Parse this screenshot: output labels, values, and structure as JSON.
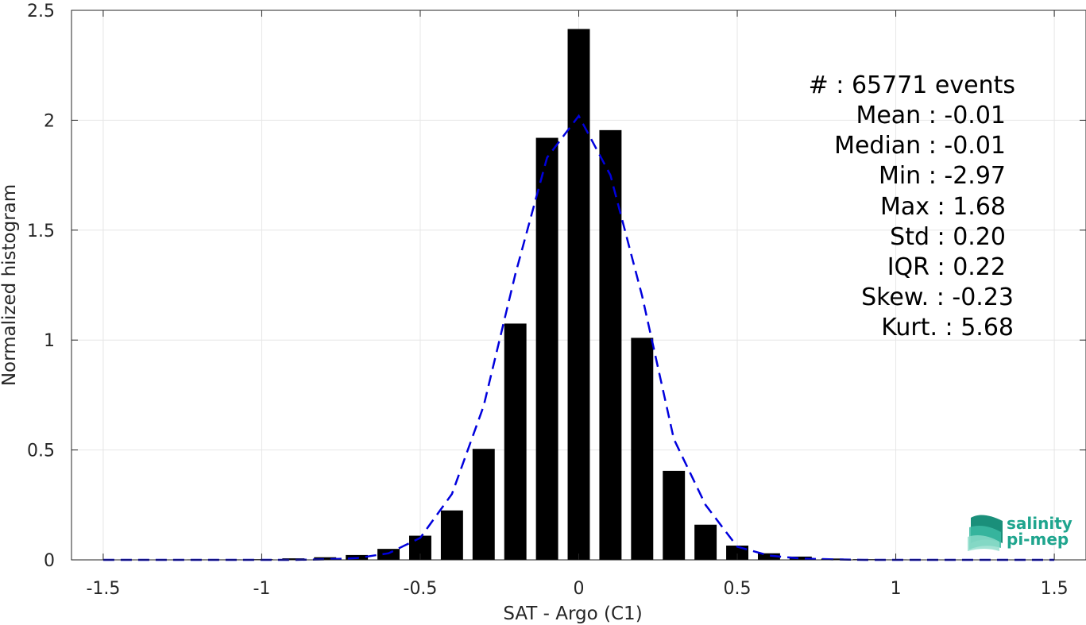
{
  "chart_data": {
    "type": "bar",
    "xlabel": "SAT - Argo (C1)",
    "ylabel": "Normalized histogram",
    "xlim": [
      -1.6,
      1.6
    ],
    "ylim": [
      0,
      2.5
    ],
    "xticks": [
      -1.5,
      -1,
      -0.5,
      0,
      0.5,
      1,
      1.5
    ],
    "xtick_labels": [
      "-1.5",
      "-1",
      "-0.5",
      "0",
      "0.5",
      "1",
      "1.5"
    ],
    "yticks": [
      0,
      0.5,
      1,
      1.5,
      2,
      2.5
    ],
    "ytick_labels": [
      "0",
      "0.5",
      "1",
      "1.5",
      "2",
      "2.5"
    ],
    "grid": true,
    "bar_width": 0.07,
    "bars": {
      "x": [
        -1.5,
        -1.4,
        -1.3,
        -1.2,
        -1.1,
        -1.0,
        -0.9,
        -0.8,
        -0.7,
        -0.6,
        -0.5,
        -0.4,
        -0.3,
        -0.2,
        -0.1,
        0.0,
        0.1,
        0.2,
        0.3,
        0.4,
        0.5,
        0.6,
        0.7,
        0.8,
        0.9,
        1.0,
        1.1,
        1.2,
        1.3,
        1.4,
        1.5
      ],
      "values": [
        0.001,
        0.001,
        0.001,
        0.002,
        0.002,
        0.003,
        0.007,
        0.012,
        0.022,
        0.05,
        0.11,
        0.225,
        0.505,
        1.075,
        1.92,
        2.415,
        1.955,
        1.01,
        0.405,
        0.16,
        0.065,
        0.03,
        0.015,
        0.006,
        0.003,
        0.002,
        0.001,
        0.001,
        0.001,
        0.001,
        0.001
      ],
      "color": "#000000"
    },
    "fit_curve": {
      "style": "dashed",
      "color": "#0000dd",
      "x": [
        -1.5,
        -1.4,
        -1.3,
        -1.2,
        -1.1,
        -1.0,
        -0.9,
        -0.8,
        -0.7,
        -0.6,
        -0.5,
        -0.4,
        -0.3,
        -0.2,
        -0.1,
        0.0,
        0.1,
        0.2,
        0.3,
        0.4,
        0.5,
        0.6,
        0.7,
        0.8,
        0.9,
        1.0,
        1.1,
        1.2,
        1.3,
        1.4,
        1.5
      ],
      "values": [
        0.0,
        0.0,
        0.0,
        0.0,
        0.0,
        0.0,
        0.0,
        0.002,
        0.008,
        0.03,
        0.1,
        0.3,
        0.7,
        1.3,
        1.83,
        2.02,
        1.75,
        1.2,
        0.55,
        0.25,
        0.06,
        0.02,
        0.006,
        0.002,
        0.0,
        0.0,
        0.0,
        0.0,
        0.0,
        0.0,
        0.0
      ]
    },
    "annotations": [
      "#  : 65771 events",
      "Mean : -0.01",
      "Median : -0.01",
      "Min : -2.97",
      "Max : 1.68",
      "Std : 0.20",
      "IQR : 0.22",
      "Skew. : -0.23",
      "Kurt. : 5.68"
    ]
  },
  "logo": {
    "line1": "salinity",
    "line2": "pi-mep",
    "color": "#1fa58e"
  }
}
